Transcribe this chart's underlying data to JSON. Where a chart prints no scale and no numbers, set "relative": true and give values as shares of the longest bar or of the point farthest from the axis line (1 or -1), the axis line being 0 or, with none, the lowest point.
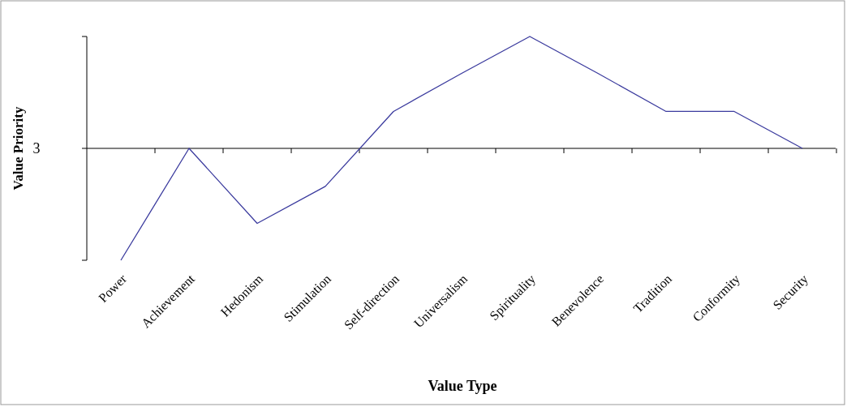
{
  "chart_data": {
    "type": "line",
    "xlabel": "Value Type",
    "ylabel": "Value Priority",
    "relative": true,
    "categories": [
      "Power",
      "Achievement",
      "Hedonism",
      "Stimulation",
      "Self-direction",
      "Universalism",
      "Spirituality",
      "Benevolence",
      "Tradition",
      "Conformity",
      "Security"
    ],
    "series": [
      {
        "color": "#3b3b9e",
        "values": [
          -1,
          0,
          -0.67,
          -0.34,
          0.33,
          0.67,
          1,
          0.67,
          0.33,
          0.33,
          0
        ]
      }
    ],
    "annotations": [
      "3"
    ],
    "marker": "none",
    "line_style": "solid"
  }
}
